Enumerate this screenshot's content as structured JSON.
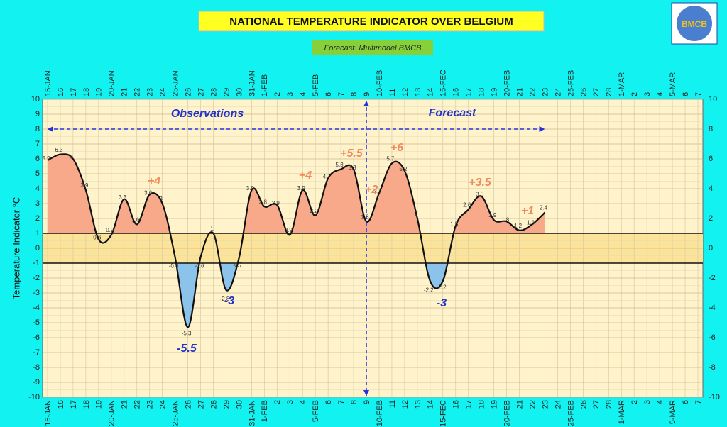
{
  "chart_data": {
    "type": "line",
    "title": "NATIONAL TEMPERATURE INDICATOR OVER  BELGIUM",
    "subtitle": "Forecast:  Multimodel BMCB",
    "logo": "BMCB",
    "ylabel": "Temperature Indicator    °C",
    "categories": [
      "15-JAN",
      "16",
      "17",
      "18",
      "19",
      "20-JAN",
      "21",
      "22",
      "23",
      "24",
      "25-JAN",
      "26",
      "27",
      "28",
      "29",
      "30",
      "31-JAN",
      "1-FEB",
      "2",
      "3",
      "4",
      "5-FEB",
      "6",
      "7",
      "8",
      "9",
      "10-FEB",
      "11",
      "12",
      "13",
      "14",
      "15-FEC",
      "16",
      "17",
      "18",
      "19",
      "20-FEB",
      "21",
      "22",
      "23",
      "24",
      "25-FEB",
      "26",
      "27",
      "28",
      "1-MAR",
      "2",
      "3",
      "4",
      "5-MAR",
      "6",
      "7"
    ],
    "series": [
      {
        "name": "Temperature Indicator",
        "color": "#111111",
        "values": [
          5.9,
          6.3,
          6,
          3.9,
          0.6,
          0.9,
          3.3,
          1.6,
          3.6,
          3,
          -0.6,
          -5.3,
          -0.6,
          1,
          -2.8,
          -0.7,
          3.9,
          2.8,
          2.9,
          0.9,
          3.9,
          2.2,
          4.7,
          5.3,
          5.3,
          1.8,
          3.7,
          5.7,
          5.2,
          2,
          -2.2,
          -2.2,
          1.5,
          2.6,
          3.5,
          1.9,
          1.8,
          1.2,
          1.6,
          2.4,
          null,
          null,
          null,
          null,
          null,
          null,
          null,
          null,
          null,
          null,
          null,
          null
        ]
      }
    ],
    "thresholds": [
      1,
      -1
    ],
    "above_color": "#f7a98a",
    "below_color": "#8cc3ea",
    "band_color": "#fbe39a",
    "annotations": [
      "Observations",
      "Forecast",
      "+4",
      "-5.5",
      "-3",
      "+4",
      "+5.5",
      "+2",
      "+6",
      "-3",
      "+3.5",
      "+1"
    ],
    "ylim": [
      -10,
      10
    ],
    "yticks": [
      -10,
      -9,
      -8,
      -7,
      -6,
      -5,
      -4,
      -3,
      -2,
      -1,
      0,
      1,
      2,
      3,
      4,
      5,
      6,
      7,
      8,
      9,
      10
    ],
    "y2lim": [
      -10,
      10
    ],
    "y2ticks": [
      -10,
      -8,
      -6,
      -4,
      -2,
      0,
      2,
      4,
      6,
      8,
      10
    ],
    "grid": true
  }
}
